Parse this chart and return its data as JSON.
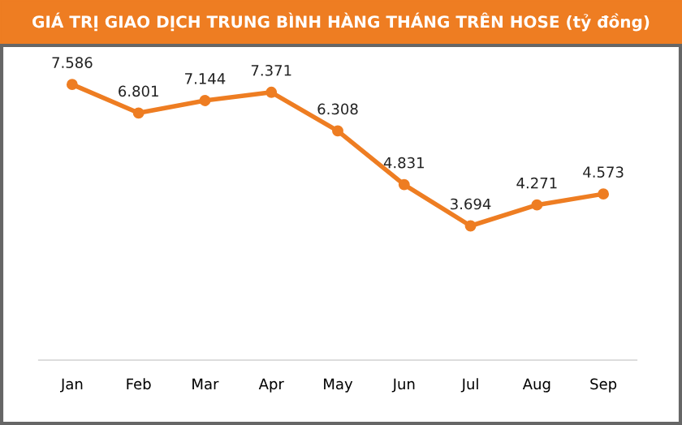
{
  "chart_data": {
    "type": "line",
    "title": "GIÁ TRỊ GIAO DỊCH TRUNG BÌNH HÀNG THÁNG TRÊN HOSE (tỷ đồng)",
    "categories": [
      "Jan",
      "Feb",
      "Mar",
      "Apr",
      "May",
      "Jun",
      "Jul",
      "Aug",
      "Sep"
    ],
    "values": [
      7586,
      6801,
      7144,
      7371,
      6308,
      4831,
      3694,
      4271,
      4573
    ],
    "value_labels": [
      "7.586",
      "6.801",
      "7.144",
      "7.371",
      "6.308",
      "4.831",
      "3.694",
      "4.271",
      "4.573"
    ],
    "color": "#ee7d22",
    "marker": "circle",
    "line_style": "solid",
    "grid": false,
    "legend": false
  }
}
